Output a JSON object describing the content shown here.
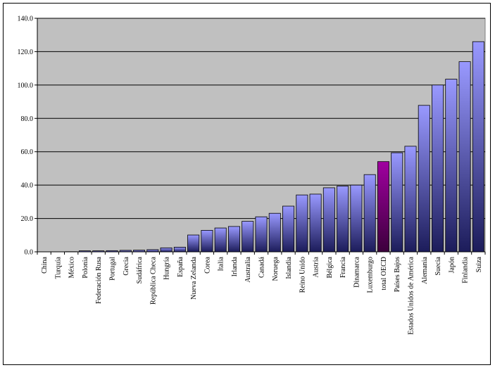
{
  "chart_data": {
    "type": "bar",
    "title": "",
    "xlabel": "",
    "ylabel": "",
    "ylim": [
      0,
      140
    ],
    "yticks": [
      "0.0",
      "20.0",
      "40.0",
      "60.0",
      "80.0",
      "100.0",
      "120.0",
      "140.0"
    ],
    "grid": true,
    "plot_background": "#c0c0c0",
    "bar_color_top": "#9999ff",
    "bar_color_bottom": "#1c1c5a",
    "highlight_color_top": "#a000a0",
    "highlight_color_bottom": "#3c003c",
    "highlight_category": "total OECD",
    "categories": [
      "China",
      "Turquía",
      "México",
      "Polonia",
      "Federación Rusa",
      "Portugal",
      "Grecia",
      "Sudáfrica",
      "República Checa",
      "Hungría",
      "España",
      "Nueva Zelanda",
      "Corea",
      "Italia",
      "Irlanda",
      "Australia",
      "Canadá",
      "Noruega",
      "Islandia",
      "Reino Unido",
      "Austria",
      "Bélgica",
      "Francia",
      "Dinamarca",
      "Luxemburgo",
      "total OECD",
      "Países Bajos",
      "Estados Unidos de América",
      "Alemania",
      "Suecia",
      "Japón",
      "Finlandia",
      "Suiza"
    ],
    "values": [
      0.0,
      0.0,
      0.1,
      0.6,
      0.6,
      0.7,
      0.9,
      1.0,
      1.3,
      2.4,
      2.8,
      10.1,
      12.9,
      14.3,
      15.2,
      18.3,
      21.0,
      23.1,
      27.4,
      34.1,
      34.6,
      38.4,
      39.4,
      40.0,
      46.3,
      54.1,
      59.4,
      63.3,
      87.8,
      100.0,
      103.5,
      114.0,
      126.0
    ]
  }
}
